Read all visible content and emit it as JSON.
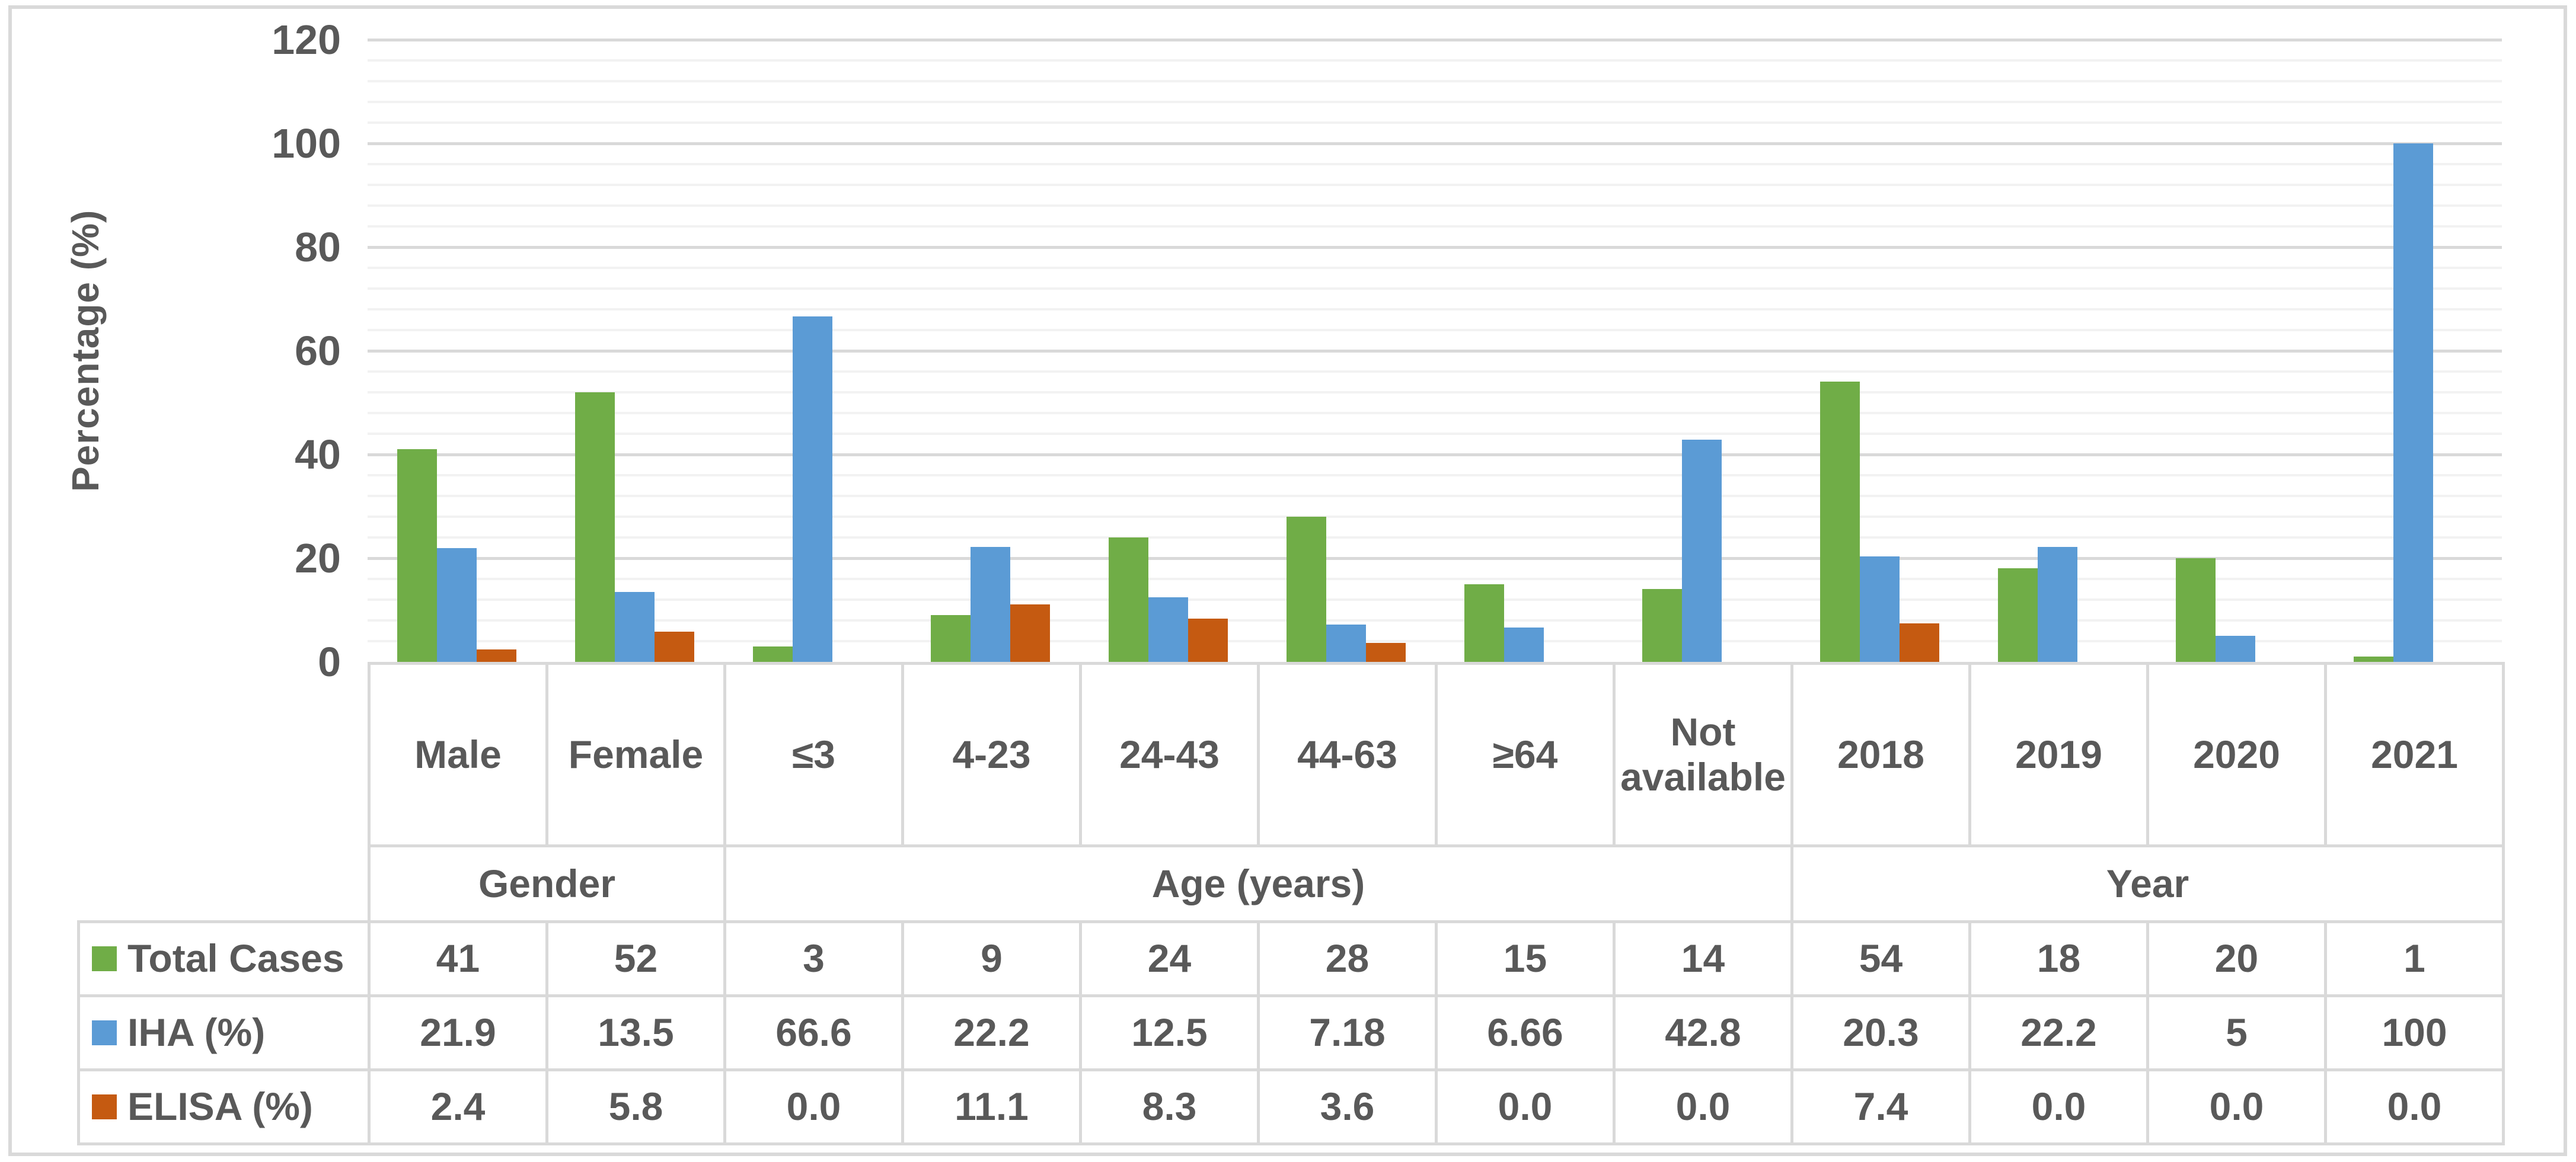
{
  "chart_data": {
    "type": "bar",
    "title": "",
    "ylabel": "Percentage (%)",
    "ylim": [
      0,
      120
    ],
    "y_major_ticks": [
      "0",
      "20",
      "40",
      "60",
      "80",
      "100",
      "120"
    ],
    "y_major_unit": 20,
    "y_minor_unit": 4,
    "grid": true,
    "legend_position": "data-table-left-column",
    "categories": [
      "Male",
      "Female",
      "≤3",
      "4-23",
      "24-43",
      "44-63",
      "≥64",
      "Not available",
      "2018",
      "2019",
      "2020",
      "2021"
    ],
    "category_groups": [
      {
        "label": "Gender",
        "span": 2
      },
      {
        "label": "Age (years)",
        "span": 6
      },
      {
        "label": "Year",
        "span": 4
      }
    ],
    "series": [
      {
        "name": "Total Cases",
        "color": "#70AD47",
        "values": [
          41,
          52,
          3,
          9,
          24,
          28,
          15,
          14,
          54,
          18,
          20,
          1
        ],
        "display": [
          "41",
          "52",
          "3",
          "9",
          "24",
          "28",
          "15",
          "14",
          "54",
          "18",
          "20",
          "1"
        ]
      },
      {
        "name": "IHA (%)",
        "color": "#5B9BD5",
        "values": [
          21.9,
          13.5,
          66.6,
          22.2,
          12.5,
          7.18,
          6.66,
          42.8,
          20.3,
          22.2,
          5,
          100
        ],
        "display": [
          "21.9",
          "13.5",
          "66.6",
          "22.2",
          "12.5",
          "7.18",
          "6.66",
          "42.8",
          "20.3",
          "22.2",
          "5",
          "100"
        ]
      },
      {
        "name": "ELISA (%)",
        "color": "#C55A11",
        "values": [
          2.4,
          5.8,
          0,
          11.1,
          8.3,
          3.6,
          0,
          0,
          7.4,
          0,
          0,
          0
        ],
        "display": [
          "2.4",
          "5.8",
          "0.0",
          "11.1",
          "8.3",
          "3.6",
          "0.0",
          "0.0",
          "7.4",
          "0.0",
          "0.0",
          "0.0"
        ]
      }
    ]
  },
  "style": {
    "text_color": "#595959",
    "border_color": "#D9D9D9",
    "major_grid_color": "#D9D9D9",
    "minor_grid_color": "#F2F2F2",
    "background": "#FFFFFF"
  }
}
